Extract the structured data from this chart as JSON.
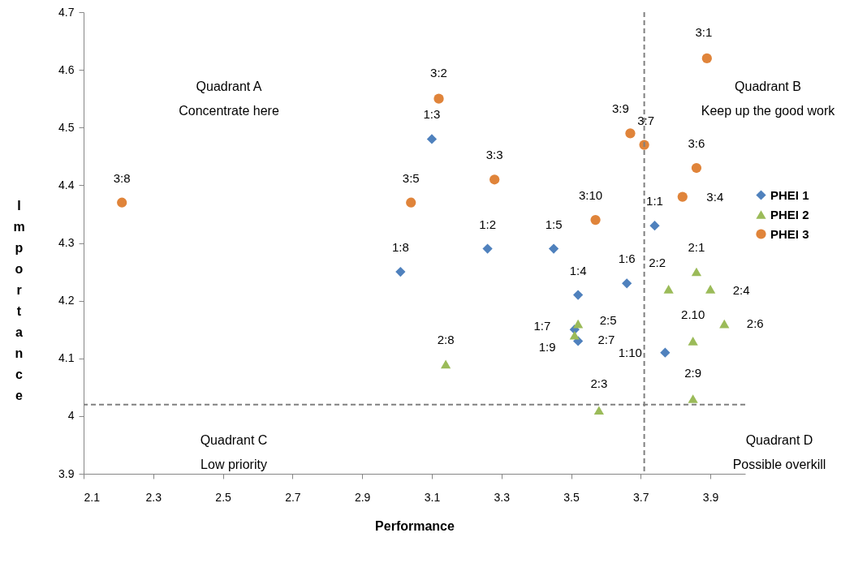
{
  "chart_data": {
    "type": "scatter",
    "xlabel": "Performance",
    "ylabel": "Importance",
    "xlim": [
      2.1,
      4.0
    ],
    "xticks": [
      2.1,
      2.3,
      2.5,
      2.7,
      2.9,
      3.1,
      3.3,
      3.5,
      3.7,
      3.9
    ],
    "ylim": [
      3.9,
      4.7
    ],
    "yticks": [
      3.9,
      4,
      4.1,
      4.2,
      4.3,
      4.4,
      4.5,
      4.6,
      4.7
    ],
    "grid": false,
    "legend": "right",
    "series": [
      {
        "name": "PHEI 1",
        "color": "#4f81bd",
        "marker": "diamond",
        "x": [
          3.74,
          3.26,
          3.1,
          3.52,
          3.45,
          3.66,
          3.51,
          3.01,
          3.52,
          3.77
        ],
        "values": [
          4.33,
          4.29,
          4.48,
          4.21,
          4.29,
          4.23,
          4.15,
          4.25,
          4.13,
          4.11
        ]
      },
      {
        "name": "PHEI 2",
        "color": "#9bbb59",
        "marker": "triangle",
        "x": [
          3.86,
          3.78,
          3.58,
          3.9,
          3.52,
          3.94,
          3.51,
          3.14,
          3.85,
          3.85
        ],
        "values": [
          4.25,
          4.22,
          4.01,
          4.22,
          4.16,
          4.16,
          4.14,
          4.09,
          4.03,
          4.13
        ]
      },
      {
        "name": "PHEI 3",
        "color": "#e0843a",
        "marker": "circle",
        "x": [
          3.89,
          3.12,
          3.28,
          3.82,
          3.04,
          3.86,
          3.71,
          2.21,
          3.67,
          3.57
        ],
        "values": [
          4.62,
          4.55,
          4.41,
          4.38,
          4.37,
          4.43,
          4.47,
          4.37,
          4.49,
          4.34
        ]
      }
    ],
    "ref_lines": [
      {
        "axis": "x",
        "value": 3.71,
        "color": "#808080",
        "line_style": "dashed"
      },
      {
        "axis": "y",
        "value": 4.02,
        "color": "#808080",
        "line_style": "dashed"
      }
    ],
    "annotations": [
      "Quadrant  A\nConcentrate here",
      "Quadrant B\nKeep up the good work",
      "Quadrant C\nLow priority",
      "Quadrant D\nPossible overkill",
      {
        "text": "1:1",
        "x": 3.74,
        "y": 4.33
      },
      {
        "text": "1:2",
        "x": 3.26,
        "y": 4.29
      },
      {
        "text": "1:3",
        "x": 3.1,
        "y": 4.48
      },
      {
        "text": "1:4",
        "x": 3.52,
        "y": 4.21
      },
      {
        "text": "1:5",
        "x": 3.45,
        "y": 4.29
      },
      {
        "text": "1:6",
        "x": 3.66,
        "y": 4.23
      },
      {
        "text": "1:7",
        "x": 3.51,
        "y": 4.15
      },
      {
        "text": "1:8",
        "x": 3.01,
        "y": 4.25
      },
      {
        "text": "1:9",
        "x": 3.52,
        "y": 4.13
      },
      {
        "text": "1:10",
        "x": 3.77,
        "y": 4.11
      },
      {
        "text": "2:1",
        "x": 3.86,
        "y": 4.25
      },
      {
        "text": "2:2",
        "x": 3.78,
        "y": 4.22
      },
      {
        "text": "2:3",
        "x": 3.58,
        "y": 4.01
      },
      {
        "text": "2:4",
        "x": 3.9,
        "y": 4.22
      },
      {
        "text": "2:5",
        "x": 3.52,
        "y": 4.16
      },
      {
        "text": "2:6",
        "x": 3.94,
        "y": 4.16
      },
      {
        "text": "2:7",
        "x": 3.51,
        "y": 4.14
      },
      {
        "text": "2:8",
        "x": 3.14,
        "y": 4.09
      },
      {
        "text": "2:9",
        "x": 3.85,
        "y": 4.03
      },
      {
        "text": "2.10",
        "x": 3.85,
        "y": 4.13
      },
      {
        "text": "3:1",
        "x": 3.89,
        "y": 4.62
      },
      {
        "text": "3:2",
        "x": 3.12,
        "y": 4.55
      },
      {
        "text": "3:3",
        "x": 3.28,
        "y": 4.41
      },
      {
        "text": "3:4",
        "x": 3.82,
        "y": 4.38
      },
      {
        "text": "3:5",
        "x": 3.04,
        "y": 4.37
      },
      {
        "text": "3:6",
        "x": 3.86,
        "y": 4.43
      },
      {
        "text": "3:7",
        "x": 3.71,
        "y": 4.47
      },
      {
        "text": "3:8",
        "x": 2.21,
        "y": 4.37
      },
      {
        "text": "3:9",
        "x": 3.67,
        "y": 4.49
      },
      {
        "text": "3:10",
        "x": 3.57,
        "y": 4.34
      }
    ]
  }
}
